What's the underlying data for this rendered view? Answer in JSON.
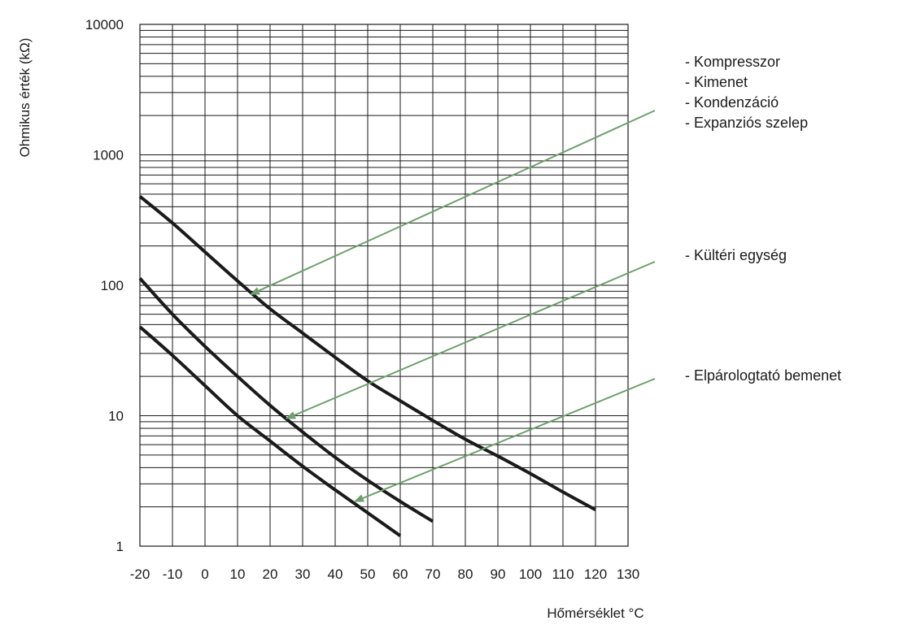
{
  "chart_data": {
    "type": "line",
    "title": "",
    "xlabel": "Hőmérséklet °C",
    "ylabel": "Ohmikus érték (kΩ)",
    "x_ticks": [
      -20,
      -10,
      0,
      10,
      20,
      30,
      40,
      50,
      60,
      70,
      80,
      90,
      100,
      110,
      120,
      130
    ],
    "y_ticks": [
      1,
      10,
      100,
      1000,
      10000
    ],
    "xlim": [
      -20,
      130
    ],
    "ylim": [
      1,
      10000
    ],
    "yscale": "log",
    "grid": true,
    "series": [
      {
        "name": "",
        "x": [
          -20,
          -10,
          0,
          10,
          20,
          30,
          40,
          50,
          60,
          70,
          80,
          90,
          100,
          110,
          120
        ],
        "y": [
          480,
          300,
          180,
          108,
          66,
          43,
          28,
          18.5,
          13,
          9.2,
          6.6,
          4.9,
          3.6,
          2.6,
          1.9
        ]
      },
      {
        "name": "",
        "x": [
          -20,
          -10,
          0,
          10,
          20,
          30,
          40,
          50,
          60,
          70
        ],
        "y": [
          113,
          60,
          34,
          20,
          12,
          7.5,
          4.8,
          3.2,
          2.2,
          1.55
        ]
      },
      {
        "name": "",
        "x": [
          -20,
          -10,
          0,
          10,
          20,
          30,
          40,
          50,
          60
        ],
        "y": [
          48,
          29,
          17,
          10,
          6.4,
          4.1,
          2.7,
          1.8,
          1.2
        ]
      }
    ],
    "annotations": [
      {
        "lines": [
          "- Kompresszor",
          "- Kimenet",
          "- Kondenzáció",
          "- Expanziós szelep"
        ],
        "arrow_target": {
          "x": 14,
          "y": 85
        }
      },
      {
        "lines": [
          "- Kültéri egység"
        ],
        "arrow_target": {
          "x": 25,
          "y": 9.5
        }
      },
      {
        "lines": [
          "- Elpárologtató bemenet"
        ],
        "arrow_target": {
          "x": 46,
          "y": 2.2
        }
      }
    ],
    "colors": {
      "curve": "#1a1a1a",
      "grid": "#1a1a1a",
      "arrow": "#6e9f6e"
    }
  }
}
